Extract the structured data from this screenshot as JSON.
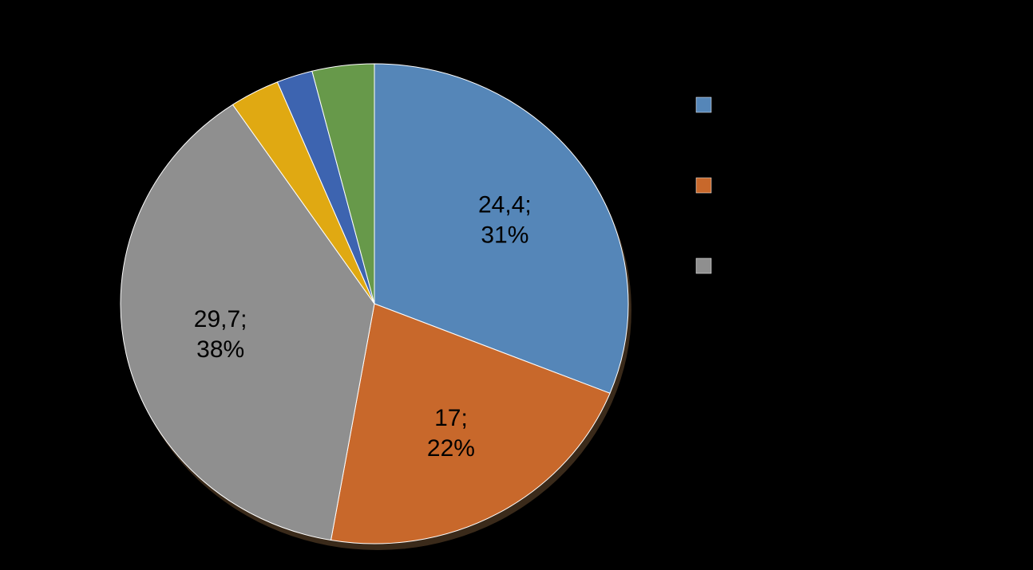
{
  "chart_data": {
    "type": "pie",
    "categories": [
      null,
      null,
      null,
      null,
      null,
      null
    ],
    "values": [
      24.4,
      17,
      29.7,
      2.5,
      1.8,
      3.1
    ],
    "value_labels": [
      "24,4;",
      "17;",
      "29,7;",
      null,
      null,
      null
    ],
    "percent_labels": [
      "31%",
      "22%",
      "38%",
      null,
      null,
      null
    ],
    "colors": [
      "#5586b8",
      "#c8682b",
      "#8f8f8f",
      "#e0a912",
      "#3d64b0",
      "#67994a"
    ],
    "legend": "right"
  }
}
